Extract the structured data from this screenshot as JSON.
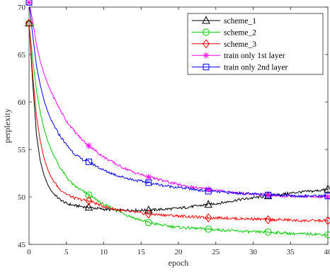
{
  "chart_data": {
    "type": "line",
    "xlabel": "epoch",
    "ylabel": "perplexity",
    "xlim": [
      0,
      40
    ],
    "ylim": [
      45,
      70
    ],
    "xticks": [
      0,
      5,
      10,
      15,
      20,
      25,
      30,
      35,
      40
    ],
    "yticks": [
      45,
      50,
      55,
      60,
      65,
      70
    ],
    "grid": false,
    "legend_position": "top-right",
    "series": [
      {
        "name": "scheme_1",
        "color": "#000000",
        "marker": "triangle",
        "marker_x": [
          0,
          8,
          16,
          24,
          32,
          40
        ],
        "x": [
          0,
          0.5,
          1,
          1.5,
          2,
          2.5,
          3,
          4,
          5,
          6,
          7,
          8,
          10,
          12,
          14,
          16,
          18,
          20,
          22,
          24,
          26,
          28,
          30,
          32,
          34,
          36,
          38,
          40
        ],
        "y": [
          68.3,
          62,
          56.5,
          53.8,
          52.3,
          51.3,
          50.6,
          49.8,
          49.3,
          49.1,
          49.0,
          48.9,
          48.7,
          48.6,
          48.6,
          48.6,
          48.7,
          48.8,
          49.0,
          49.2,
          49.4,
          49.7,
          49.9,
          50.1,
          50.3,
          50.5,
          50.6,
          50.8
        ]
      },
      {
        "name": "scheme_2",
        "color": "#00cc00",
        "marker": "circle",
        "marker_x": [
          0,
          8,
          16,
          24,
          32,
          40
        ],
        "x": [
          0,
          0.5,
          1,
          1.5,
          2,
          2.5,
          3,
          4,
          5,
          6,
          7,
          8,
          10,
          12,
          14,
          16,
          18,
          20,
          22,
          24,
          26,
          28,
          30,
          32,
          34,
          36,
          38,
          40
        ],
        "y": [
          68.3,
          64.5,
          61.2,
          58.9,
          57.2,
          55.9,
          54.9,
          53.3,
          52.1,
          51.2,
          50.7,
          50.2,
          49.2,
          48.5,
          47.8,
          47.3,
          47.0,
          46.8,
          46.7,
          46.6,
          46.5,
          46.4,
          46.3,
          46.3,
          46.2,
          46.1,
          46.1,
          46.0
        ]
      },
      {
        "name": "scheme_3",
        "color": "#ff0000",
        "marker": "diamond",
        "marker_x": [
          0,
          8,
          16,
          24,
          32,
          40
        ],
        "x": [
          0,
          0.5,
          1,
          1.5,
          2,
          2.5,
          3,
          4,
          5,
          6,
          7,
          8,
          10,
          12,
          14,
          16,
          18,
          20,
          22,
          24,
          26,
          28,
          30,
          32,
          34,
          36,
          38,
          40
        ],
        "y": [
          68.3,
          62.8,
          58.5,
          55.9,
          54.1,
          52.9,
          52.0,
          50.9,
          50.3,
          49.9,
          49.7,
          49.6,
          49.0,
          48.6,
          48.4,
          48.2,
          48.1,
          48.0,
          47.9,
          47.8,
          47.8,
          47.7,
          47.7,
          47.6,
          47.6,
          47.5,
          47.5,
          47.5
        ]
      },
      {
        "name": "train only 1st layer",
        "color": "#ff00ff",
        "marker": "asterisk",
        "marker_x": [
          0,
          8,
          16,
          24,
          32,
          40
        ],
        "x": [
          0,
          0.5,
          1,
          1.5,
          2,
          2.5,
          3,
          4,
          5,
          6,
          7,
          8,
          10,
          12,
          14,
          16,
          18,
          20,
          22,
          24,
          26,
          28,
          30,
          32,
          34,
          36,
          38,
          40
        ],
        "y": [
          70.5,
          68.5,
          66.0,
          64.3,
          63.0,
          61.9,
          61.0,
          59.4,
          58.0,
          57.0,
          56.1,
          55.4,
          54.2,
          53.3,
          52.6,
          52.1,
          51.7,
          51.3,
          51.0,
          50.8,
          50.6,
          50.4,
          50.3,
          50.2,
          50.1,
          50.1,
          50.0,
          50.0
        ]
      },
      {
        "name": "train only 2nd layer",
        "color": "#0000ff",
        "marker": "square",
        "marker_x": [
          0,
          8,
          16,
          24,
          32,
          40
        ],
        "x": [
          0,
          0.5,
          1,
          1.5,
          2,
          2.5,
          3,
          4,
          5,
          6,
          7,
          8,
          10,
          12,
          14,
          16,
          18,
          20,
          22,
          24,
          26,
          28,
          30,
          32,
          34,
          36,
          38,
          40
        ],
        "y": [
          70.5,
          67.0,
          63.8,
          61.8,
          60.2,
          59.0,
          58.0,
          56.6,
          55.5,
          54.6,
          54.0,
          53.7,
          52.8,
          52.2,
          51.8,
          51.5,
          51.2,
          51.0,
          50.8,
          50.6,
          50.5,
          50.4,
          50.3,
          50.2,
          50.2,
          50.1,
          50.1,
          50.1
        ]
      }
    ]
  }
}
